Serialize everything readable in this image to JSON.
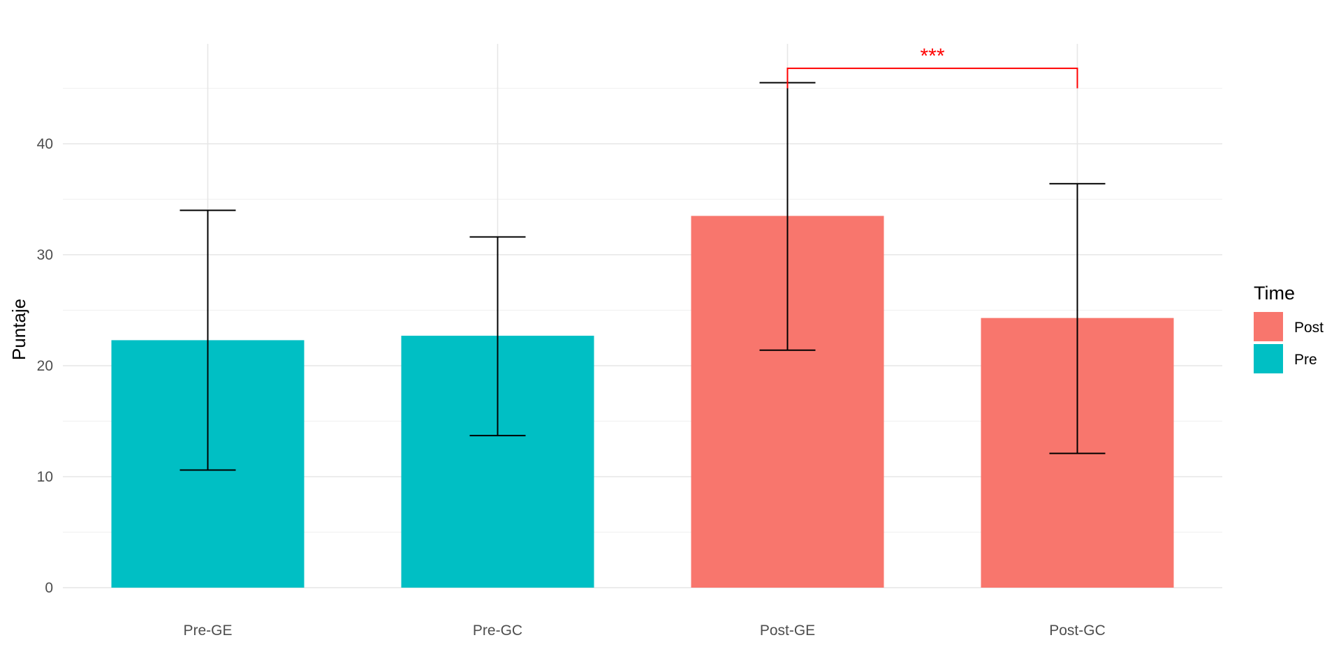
{
  "chart_data": {
    "type": "bar",
    "categories": [
      "Pre-GE",
      "Pre-GC",
      "Post-GE",
      "Post-GC"
    ],
    "values": [
      22.3,
      22.7,
      33.5,
      24.3
    ],
    "error_low": [
      10.6,
      13.7,
      21.4,
      12.1
    ],
    "error_high": [
      34.0,
      31.6,
      45.5,
      36.4
    ],
    "fill_group": [
      "Pre",
      "Pre",
      "Post",
      "Post"
    ],
    "xlabel": "",
    "ylabel": "Puntaje",
    "ylim": [
      0,
      49
    ],
    "yticks": [
      0,
      10,
      20,
      30,
      40
    ],
    "grid": true,
    "legend": {
      "title": "Time",
      "position": "right",
      "items": [
        {
          "name": "Post",
          "color": "#F8766D"
        },
        {
          "name": "Pre",
          "color": "#00BFC4"
        }
      ]
    },
    "annotation": {
      "label": "***",
      "from": "Post-GE",
      "to": "Post-GC",
      "y": 46.8,
      "tip_end": 45.0,
      "color": "#FF0000"
    }
  }
}
